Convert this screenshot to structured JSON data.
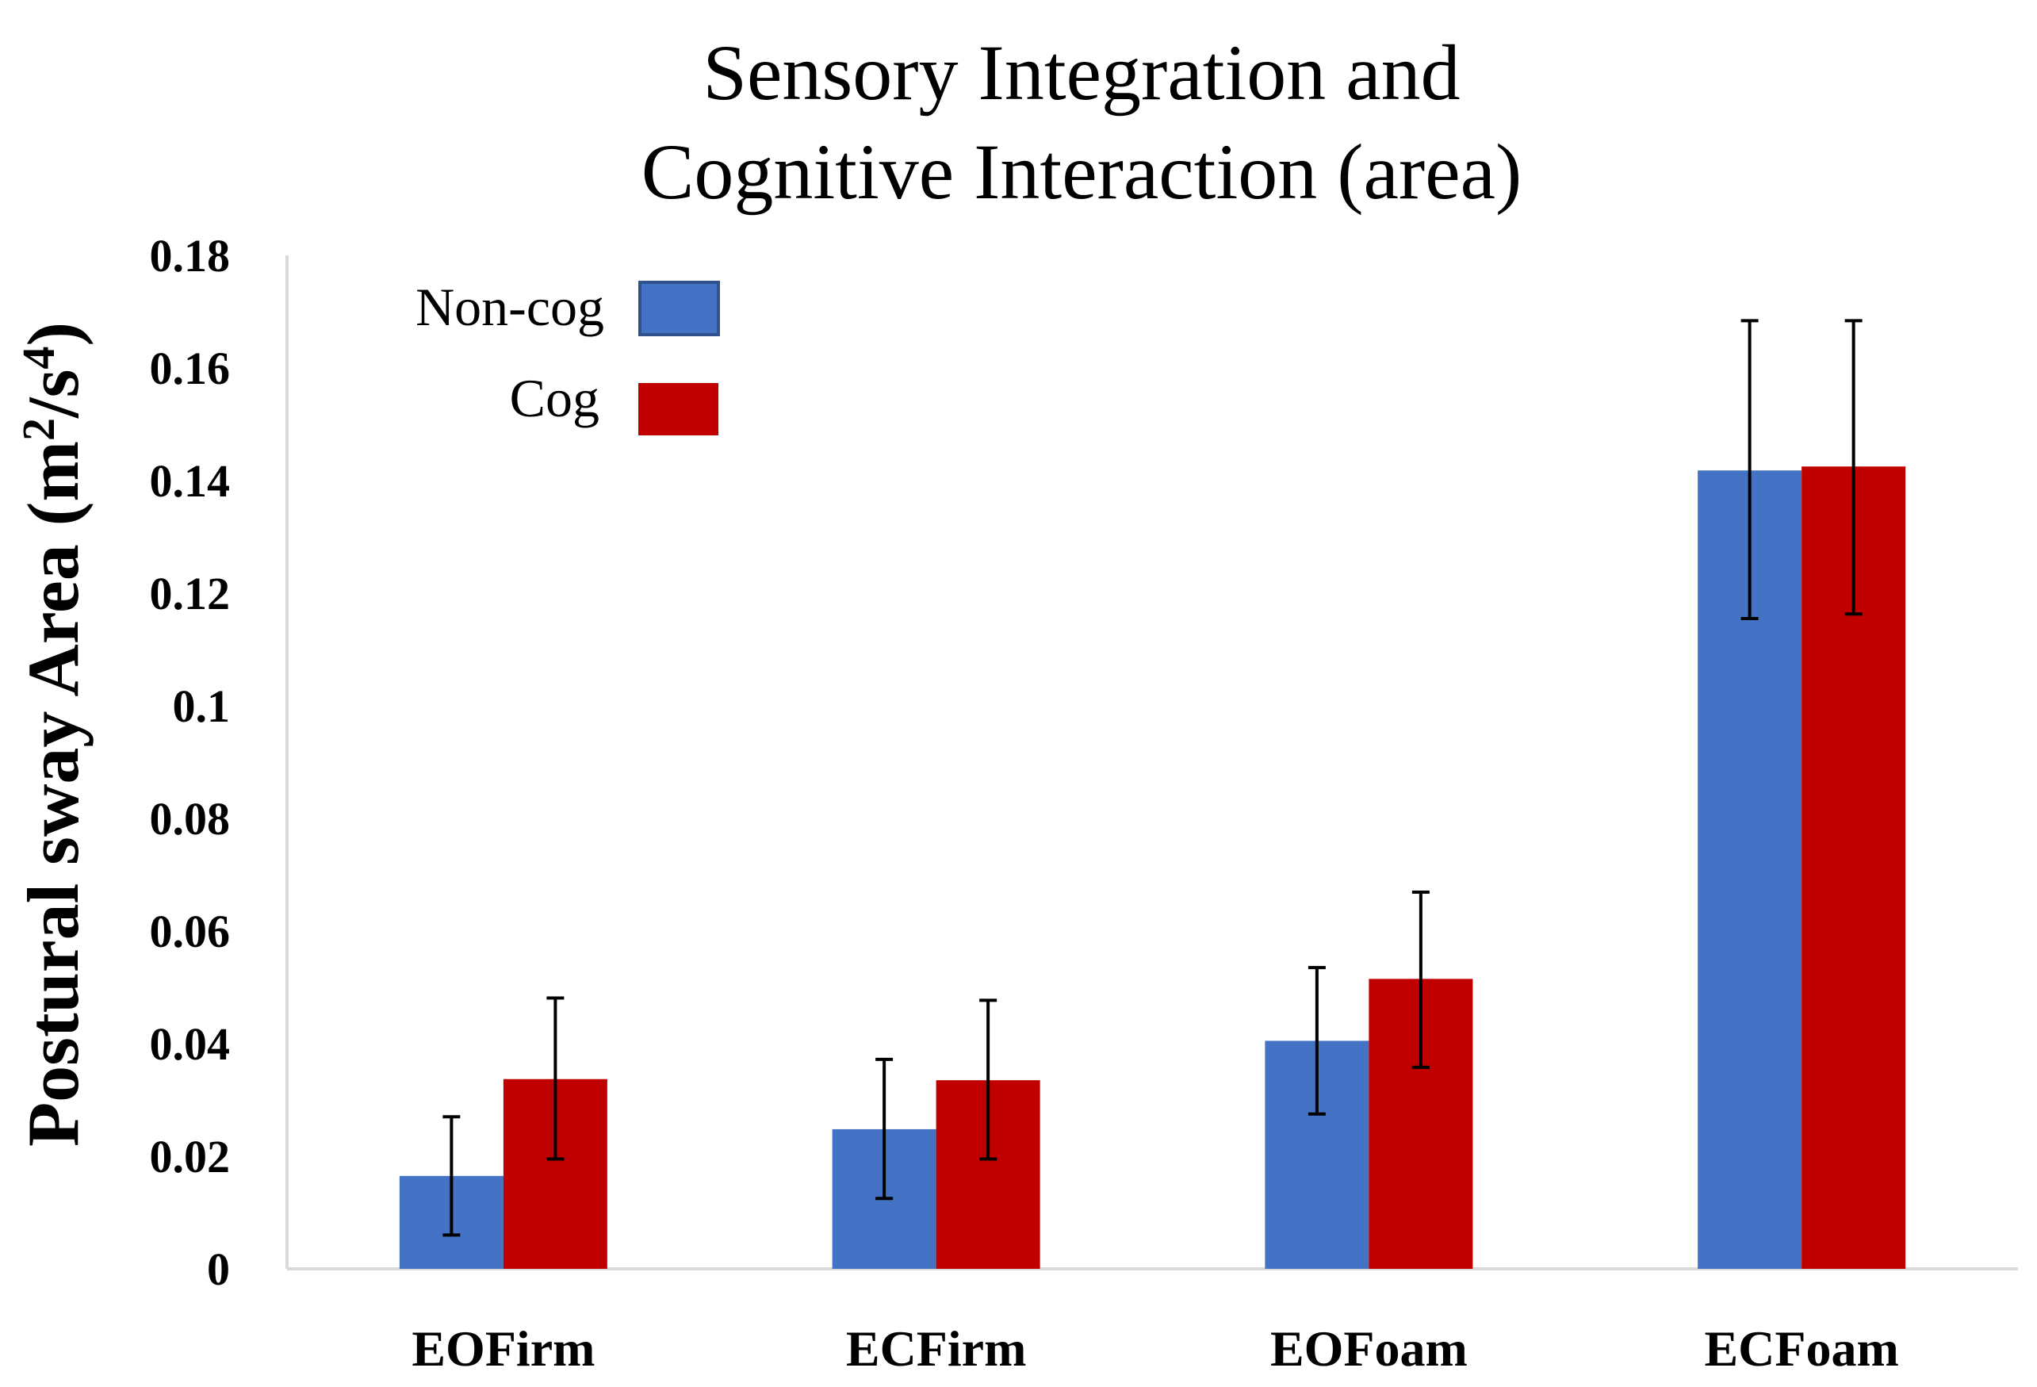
{
  "chart_data": {
    "type": "bar",
    "title_lines": [
      "Sensory Integration and",
      "Cognitive Interaction (area)"
    ],
    "ylabel": {
      "main": "Postural sway Area (m",
      "sup1": "2",
      "mid": "/s",
      "sup2": "4",
      "end": ")"
    },
    "xlabel": "",
    "categories": [
      "EOFirm",
      "ECFirm",
      "EOFoam",
      "ECFoam"
    ],
    "ylim": [
      0,
      0.18
    ],
    "ytick_values": [
      0,
      0.02,
      0.04,
      0.06,
      0.08,
      0.1,
      0.12,
      0.14,
      0.16,
      0.18
    ],
    "ytick_labels": [
      "0",
      "0.02",
      "0.04",
      "0.06",
      "0.08",
      "0.1",
      "0.12",
      "0.14",
      "0.16",
      "0.18"
    ],
    "grid": false,
    "legend_position": "top-left",
    "series": [
      {
        "name": "Non-cog",
        "color": "#4472C4",
        "values": [
          0.0165,
          0.0248,
          0.0405,
          0.1418
        ],
        "error_low": [
          0.006,
          0.0125,
          0.0275,
          0.1155
        ],
        "error_high": [
          0.027,
          0.0372,
          0.0535,
          0.1684
        ]
      },
      {
        "name": "Cog",
        "color": "#C00000",
        "values": [
          0.0337,
          0.0335,
          0.0515,
          0.1425
        ],
        "error_low": [
          0.0195,
          0.0195,
          0.0358,
          0.1163
        ],
        "error_high": [
          0.0481,
          0.0477,
          0.0669,
          0.1684
        ]
      }
    ]
  }
}
